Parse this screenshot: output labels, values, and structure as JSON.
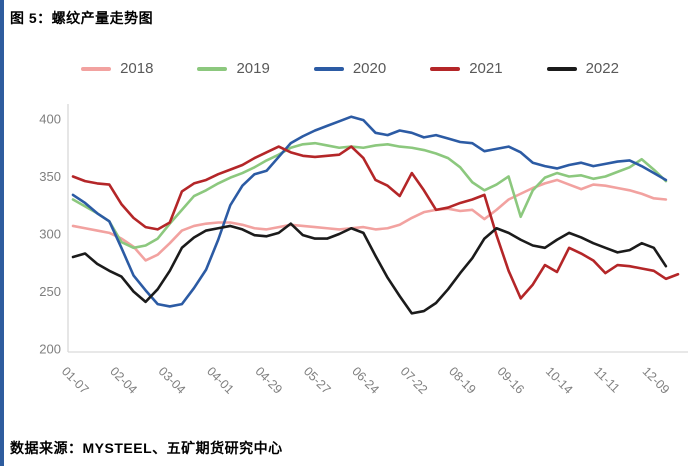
{
  "page": {
    "title": "图 5：螺纹产量走势图",
    "source": "数据来源：MYSTEEL、五矿期货研究中心",
    "accent_bar_color": "#2E5C9E"
  },
  "chart_data": {
    "type": "line",
    "title": "螺纹产量走势图",
    "xlabel": "",
    "ylabel": "",
    "ylim": [
      200,
      400
    ],
    "y_ticks": [
      400,
      350,
      300,
      250,
      200
    ],
    "grid": false,
    "legend_position": "top",
    "axis_color": "#D9D9D9",
    "tick_label_color": "#7F7F7F",
    "x_tick_every": 4,
    "x_tick_labels": [
      "01-07",
      "02-04",
      "03-04",
      "04-01",
      "04-29",
      "05-27",
      "06-24",
      "07-22",
      "08-19",
      "09-16",
      "10-14",
      "11-11",
      "12-09"
    ],
    "series": [
      {
        "name": "2018",
        "color": "#F2A2A0",
        "values": [
          307,
          305,
          303,
          301,
          296,
          289,
          277,
          282,
          292,
          303,
          307,
          309,
          310,
          310,
          308,
          305,
          304,
          306,
          308,
          307,
          306,
          305,
          304,
          305,
          306,
          304,
          305,
          308,
          314,
          319,
          321,
          322,
          320,
          321,
          313,
          321,
          330,
          335,
          340,
          344,
          347,
          343,
          339,
          343,
          342,
          340,
          338,
          335,
          331,
          330
        ]
      },
      {
        "name": "2019",
        "color": "#8CC87E",
        "values": [
          330,
          324,
          318,
          311,
          293,
          288,
          290,
          296,
          309,
          321,
          333,
          338,
          344,
          349,
          353,
          358,
          364,
          369,
          375,
          378,
          379,
          377,
          375,
          376,
          375,
          377,
          378,
          376,
          375,
          373,
          370,
          366,
          358,
          345,
          338,
          343,
          350,
          315,
          338,
          349,
          353,
          350,
          351,
          348,
          350,
          354,
          358,
          365,
          356,
          346
        ]
      },
      {
        "name": "2020",
        "color": "#2C5BA4",
        "values": [
          334,
          327,
          318,
          311,
          288,
          264,
          251,
          239,
          237,
          239,
          253,
          269,
          295,
          325,
          342,
          352,
          355,
          367,
          379,
          385,
          390,
          394,
          398,
          402,
          399,
          388,
          386,
          390,
          388,
          384,
          386,
          383,
          380,
          379,
          372,
          374,
          376,
          371,
          362,
          359,
          357,
          360,
          362,
          359,
          361,
          363,
          364,
          359,
          353,
          347
        ]
      },
      {
        "name": "2021",
        "color": "#B42628",
        "values": [
          350,
          346,
          344,
          343,
          326,
          314,
          306,
          304,
          310,
          337,
          344,
          347,
          352,
          356,
          360,
          366,
          371,
          376,
          371,
          368,
          367,
          368,
          369,
          376,
          366,
          347,
          342,
          333,
          353,
          338,
          321,
          323,
          327,
          330,
          334,
          299,
          268,
          244,
          256,
          273,
          267,
          288,
          283,
          277,
          266,
          273,
          272,
          270,
          268,
          261,
          265
        ]
      },
      {
        "name": "2022",
        "color": "#1B1B1B",
        "values": [
          280,
          283,
          274,
          268,
          263,
          250,
          241,
          252,
          268,
          288,
          297,
          303,
          305,
          307,
          304,
          299,
          298,
          301,
          309,
          299,
          296,
          296,
          300,
          305,
          301,
          281,
          262,
          246,
          231,
          233,
          240,
          252,
          266,
          279,
          296,
          305,
          301,
          295,
          290,
          288,
          295,
          301,
          297,
          292,
          288,
          284,
          286,
          292,
          288,
          272
        ]
      }
    ]
  }
}
